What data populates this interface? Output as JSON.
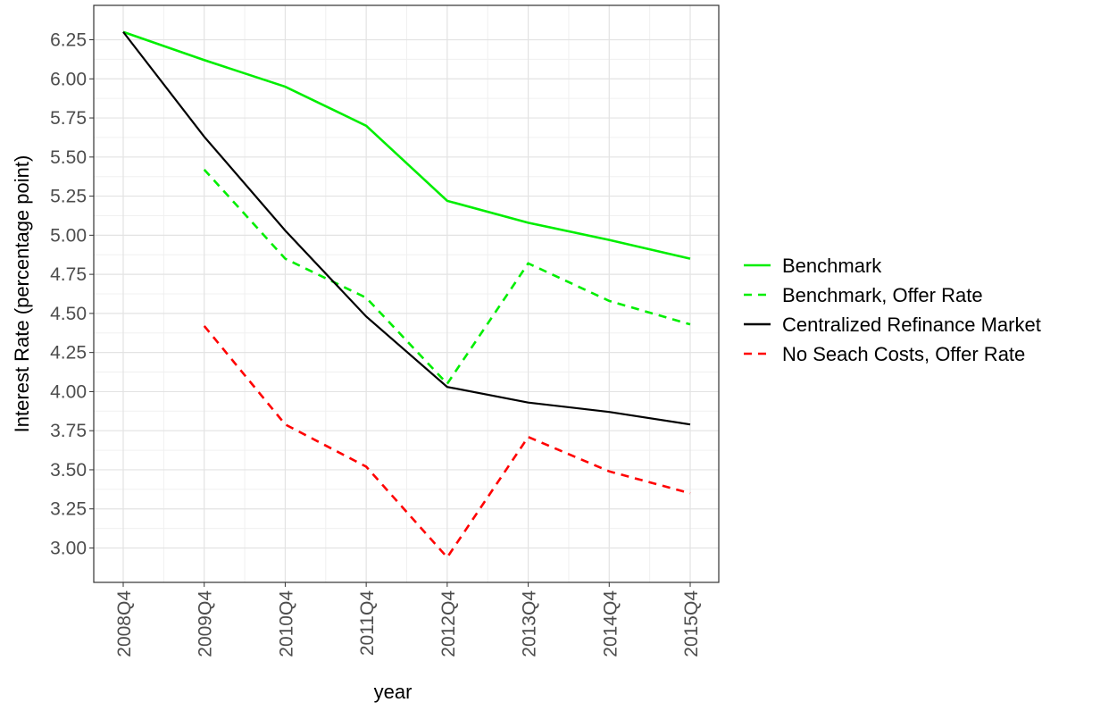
{
  "chart_data": {
    "type": "line",
    "x_label": "year",
    "y_label": "Interest Rate (percentage point)",
    "categories": [
      "2008Q4",
      "2009Q4",
      "2010Q4",
      "2011Q4",
      "2012Q4",
      "2013Q4",
      "2014Q4",
      "2015Q4"
    ],
    "series": [
      {
        "name": "Benchmark",
        "color": "#00ee00",
        "dash": "solid",
        "values": [
          6.3,
          6.12,
          5.95,
          5.7,
          5.22,
          5.08,
          4.97,
          4.85
        ]
      },
      {
        "name": "Benchmark, Offer Rate",
        "color": "#00ee00",
        "dash": "dashed",
        "values": [
          null,
          5.42,
          4.85,
          4.6,
          4.05,
          4.82,
          4.58,
          4.43
        ]
      },
      {
        "name": "Centralized Refinance Market",
        "color": "#000000",
        "dash": "solid",
        "values": [
          6.3,
          5.63,
          5.03,
          4.48,
          4.03,
          3.93,
          3.87,
          3.79
        ]
      },
      {
        "name": "No Seach Costs, Offer Rate",
        "color": "#ff0000",
        "dash": "dashed",
        "values": [
          null,
          4.42,
          3.79,
          3.52,
          2.94,
          3.71,
          3.49,
          3.35
        ]
      }
    ],
    "ylim": [
      2.78,
      6.47
    ],
    "yticks": [
      {
        "value": 3,
        "label": "3.00"
      },
      3.25,
      {
        "value": 3.5,
        "label": "3.50"
      },
      3.75,
      {
        "value": 4,
        "label": "4.00"
      },
      4.25,
      {
        "value": 4.5,
        "label": "4.50"
      },
      4.75,
      {
        "value": 5,
        "label": "5.00"
      },
      5.25,
      {
        "value": 5.5,
        "label": "5.50"
      },
      5.75,
      {
        "value": 6,
        "label": "6.00"
      },
      6.25
    ],
    "grid": true,
    "legend": "right"
  }
}
